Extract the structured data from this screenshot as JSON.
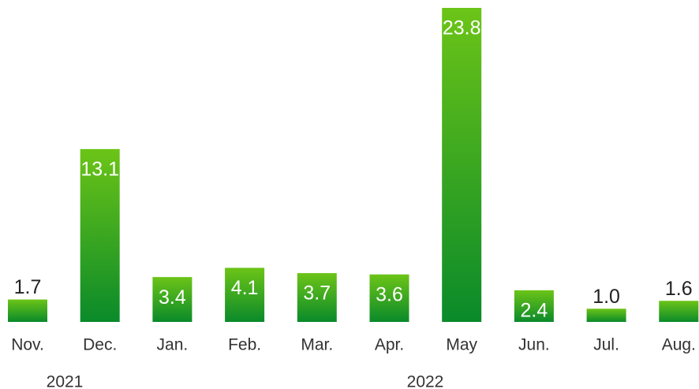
{
  "chart_data": {
    "type": "bar",
    "categories": [
      "Nov.",
      "Dec.",
      "Jan.",
      "Feb.",
      "Mar.",
      "Apr.",
      "May",
      "Jun.",
      "Jul.",
      "Aug."
    ],
    "values": [
      1.7,
      13.1,
      3.4,
      4.1,
      3.7,
      3.6,
      23.8,
      2.4,
      1.0,
      1.6
    ],
    "value_labels": [
      "1.7",
      "13.1",
      "3.4",
      "4.1",
      "3.7",
      "3.6",
      "23.8",
      "2.4",
      "1.0",
      "1.6"
    ],
    "years": [
      "2021",
      "2022"
    ],
    "color": "#3fae1c"
  }
}
